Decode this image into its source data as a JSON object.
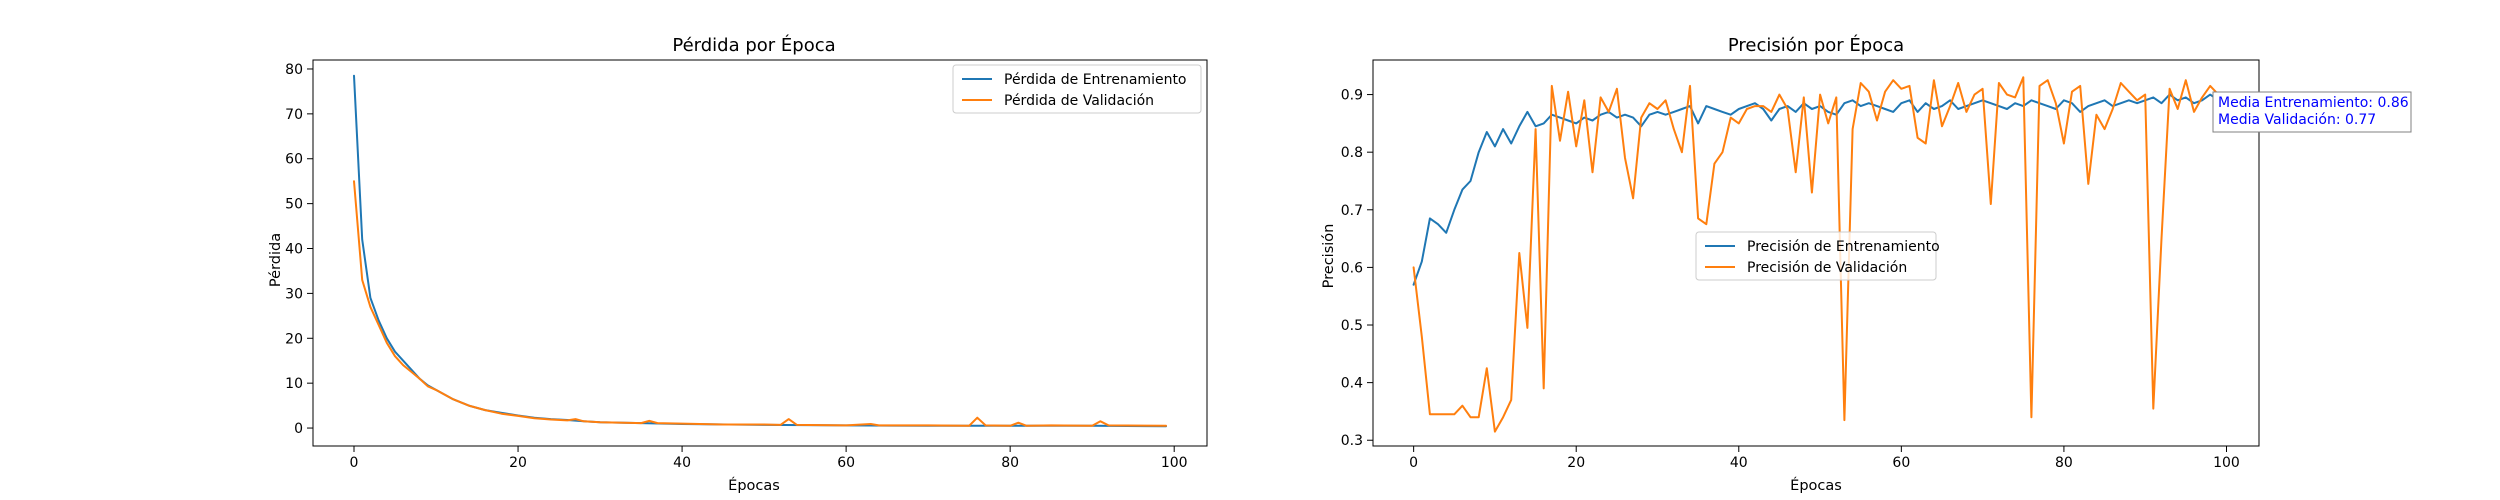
{
  "chart_data": [
    {
      "type": "line",
      "title": "Pérdida por Época",
      "xlabel": "Épocas",
      "ylabel": "Pérdida",
      "xlim": [
        -5,
        104
      ],
      "ylim": [
        -4,
        82
      ],
      "xticks": [
        0,
        20,
        40,
        60,
        80,
        100
      ],
      "yticks": [
        0,
        10,
        20,
        30,
        40,
        50,
        60,
        70,
        80
      ],
      "legend": "top-right",
      "grid": false,
      "series": [
        {
          "name": "Pérdida de Entrenamiento",
          "color": "#1f77b4",
          "x": [
            0,
            1,
            2,
            3,
            4,
            5,
            6,
            7,
            8,
            9,
            10,
            12,
            14,
            16,
            18,
            20,
            22,
            24,
            26,
            28,
            30,
            35,
            40,
            50,
            60,
            70,
            80,
            90,
            99
          ],
          "y": [
            78.5,
            42,
            29,
            24,
            20,
            17,
            15,
            13,
            11,
            9.5,
            8.5,
            6.5,
            5,
            4,
            3.4,
            2.8,
            2.3,
            2,
            1.8,
            1.5,
            1.3,
            1.1,
            0.9,
            0.7,
            0.6,
            0.5,
            0.5,
            0.5,
            0.4
          ]
        },
        {
          "name": "Pérdida de Validación",
          "color": "#ff7f0e",
          "x": [
            0,
            1,
            2,
            3,
            4,
            5,
            6,
            7,
            8,
            9,
            10,
            12,
            14,
            16,
            18,
            20,
            22,
            24,
            26,
            27,
            28,
            30,
            35,
            36,
            37,
            40,
            45,
            50,
            52,
            53,
            54,
            60,
            63,
            64,
            70,
            75,
            76,
            77,
            80,
            81,
            82,
            85,
            90,
            91,
            92,
            99
          ],
          "y": [
            55,
            33,
            27,
            23,
            19,
            16,
            14,
            12.5,
            11,
            9.3,
            8.5,
            6.5,
            5,
            4,
            3.2,
            2.7,
            2.2,
            1.9,
            1.7,
            2,
            1.5,
            1.3,
            1.1,
            1.6,
            1.1,
            1,
            0.8,
            0.8,
            0.7,
            2,
            0.7,
            0.6,
            0.9,
            0.6,
            0.6,
            0.5,
            2.3,
            0.6,
            0.5,
            1.2,
            0.5,
            0.6,
            0.5,
            1.5,
            0.6,
            0.5
          ]
        }
      ]
    },
    {
      "type": "line",
      "title": "Precisión por Época",
      "xlabel": "Épocas",
      "ylabel": "Precisión",
      "xlim": [
        -5,
        104
      ],
      "ylim": [
        0.29,
        0.96
      ],
      "xticks": [
        0,
        20,
        40,
        60,
        80,
        100
      ],
      "yticks": [
        0.3,
        0.4,
        0.5,
        0.6,
        0.7,
        0.8,
        0.9
      ],
      "legend": "center",
      "grid": false,
      "annotation": {
        "lines": [
          "Media Entrenamiento: 0.86",
          "Media Validación: 0.77"
        ],
        "anchor_x": 100,
        "anchor_y": 0.9
      },
      "series": [
        {
          "name": "Precisión de Entrenamiento",
          "color": "#1f77b4",
          "x": [
            0,
            1,
            2,
            3,
            4,
            5,
            6,
            7,
            8,
            9,
            10,
            11,
            12,
            13,
            14,
            15,
            16,
            17,
            18,
            19,
            20,
            21,
            22,
            23,
            24,
            25,
            26,
            27,
            28,
            29,
            30,
            31,
            32,
            33,
            34,
            35,
            36,
            37,
            38,
            39,
            40,
            41,
            42,
            43,
            44,
            45,
            46,
            47,
            48,
            49,
            50,
            51,
            52,
            53,
            54,
            55,
            56,
            57,
            58,
            59,
            60,
            61,
            62,
            63,
            64,
            65,
            66,
            67,
            68,
            69,
            70,
            71,
            72,
            73,
            74,
            75,
            76,
            77,
            78,
            79,
            80,
            81,
            82,
            83,
            84,
            85,
            86,
            87,
            88,
            89,
            90,
            91,
            92,
            93,
            94,
            95,
            96,
            97,
            98,
            99
          ],
          "y": [
            0.57,
            0.61,
            0.685,
            0.675,
            0.66,
            0.7,
            0.735,
            0.75,
            0.8,
            0.835,
            0.81,
            0.84,
            0.815,
            0.845,
            0.87,
            0.845,
            0.85,
            0.865,
            0.86,
            0.855,
            0.85,
            0.86,
            0.855,
            0.865,
            0.87,
            0.86,
            0.865,
            0.86,
            0.845,
            0.865,
            0.87,
            0.865,
            0.87,
            0.875,
            0.88,
            0.85,
            0.88,
            0.875,
            0.87,
            0.865,
            0.875,
            0.88,
            0.885,
            0.875,
            0.855,
            0.875,
            0.88,
            0.87,
            0.885,
            0.875,
            0.88,
            0.87,
            0.865,
            0.885,
            0.89,
            0.88,
            0.885,
            0.88,
            0.875,
            0.87,
            0.885,
            0.89,
            0.87,
            0.885,
            0.875,
            0.88,
            0.89,
            0.875,
            0.88,
            0.885,
            0.89,
            0.885,
            0.88,
            0.875,
            0.885,
            0.88,
            0.89,
            0.885,
            0.88,
            0.875,
            0.89,
            0.885,
            0.87,
            0.88,
            0.885,
            0.89,
            0.88,
            0.885,
            0.89,
            0.885,
            0.89,
            0.895,
            0.885,
            0.9,
            0.89,
            0.895,
            0.885,
            0.89,
            0.9,
            0.89
          ]
        },
        {
          "name": "Precisión de Validación",
          "color": "#ff7f0e",
          "x": [
            0,
            1,
            2,
            3,
            4,
            5,
            6,
            7,
            8,
            9,
            10,
            11,
            12,
            13,
            14,
            15,
            16,
            17,
            18,
            19,
            20,
            21,
            22,
            23,
            24,
            25,
            26,
            27,
            28,
            29,
            30,
            31,
            32,
            33,
            34,
            35,
            36,
            37,
            38,
            39,
            40,
            41,
            42,
            43,
            44,
            45,
            46,
            47,
            48,
            49,
            50,
            51,
            52,
            53,
            54,
            55,
            56,
            57,
            58,
            59,
            60,
            61,
            62,
            63,
            64,
            65,
            66,
            67,
            68,
            69,
            70,
            71,
            72,
            73,
            74,
            75,
            76,
            77,
            78,
            79,
            80,
            81,
            82,
            83,
            84,
            85,
            86,
            87,
            88,
            89,
            90,
            91,
            92,
            93,
            94,
            95,
            96,
            97,
            98,
            99
          ],
          "y": [
            0.6,
            0.48,
            0.345,
            0.345,
            0.345,
            0.345,
            0.36,
            0.34,
            0.34,
            0.425,
            0.315,
            0.34,
            0.37,
            0.625,
            0.495,
            0.84,
            0.39,
            0.915,
            0.82,
            0.905,
            0.81,
            0.89,
            0.765,
            0.895,
            0.87,
            0.91,
            0.79,
            0.72,
            0.86,
            0.885,
            0.875,
            0.89,
            0.84,
            0.8,
            0.915,
            0.685,
            0.675,
            0.78,
            0.8,
            0.86,
            0.85,
            0.875,
            0.88,
            0.88,
            0.87,
            0.9,
            0.875,
            0.765,
            0.895,
            0.73,
            0.9,
            0.85,
            0.895,
            0.335,
            0.84,
            0.92,
            0.905,
            0.855,
            0.905,
            0.925,
            0.91,
            0.915,
            0.825,
            0.815,
            0.925,
            0.845,
            0.88,
            0.92,
            0.87,
            0.9,
            0.91,
            0.71,
            0.92,
            0.9,
            0.895,
            0.93,
            0.34,
            0.915,
            0.925,
            0.885,
            0.815,
            0.905,
            0.915,
            0.745,
            0.865,
            0.84,
            0.875,
            0.92,
            0.905,
            0.89,
            0.9,
            0.355,
            0.65,
            0.91,
            0.875,
            0.925,
            0.87,
            0.895,
            0.915,
            0.9
          ]
        }
      ]
    }
  ]
}
